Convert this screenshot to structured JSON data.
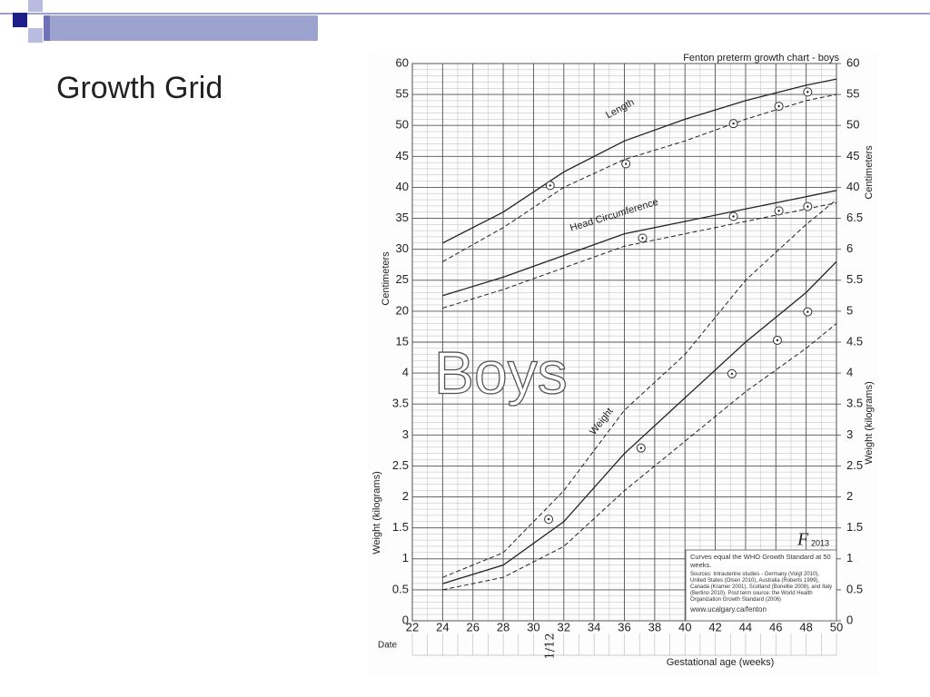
{
  "slide": {
    "title": "Growth Grid"
  },
  "chart_data": [
    {
      "type": "line",
      "title": "Fenton preterm growth chart - boys",
      "watermark": "Boys",
      "x_label": "Gestational age (weeks)",
      "date_label": "Date",
      "date_entry": "1/12",
      "y_label": "Centimeters",
      "y2_label": "Centimeters",
      "xlim": [
        22,
        50
      ],
      "xticks": [
        22,
        24,
        26,
        28,
        30,
        32,
        34,
        36,
        38,
        40,
        42,
        44,
        46,
        48,
        50
      ],
      "ylim": [
        -30,
        60
      ],
      "yticks": [
        15,
        20,
        25,
        30,
        35,
        40,
        45,
        50,
        55,
        60
      ],
      "y2lim": [
        -30,
        60
      ],
      "y2ticks": [
        40,
        45,
        50,
        55,
        60
      ],
      "series": [
        {
          "name": "Length",
          "style": "solid",
          "x": [
            24,
            28,
            32,
            36,
            40,
            44,
            48,
            50
          ],
          "values": [
            31,
            36,
            42.5,
            47.5,
            51,
            54,
            56.5,
            57.5
          ]
        },
        {
          "style": "dashed",
          "x": [
            24,
            28,
            32,
            36,
            40,
            44,
            48,
            50
          ],
          "values": [
            28,
            33.5,
            40,
            44.5,
            47.5,
            51,
            54,
            55
          ]
        },
        {
          "name": "Head Circumference",
          "style": "solid",
          "x": [
            24,
            28,
            32,
            36,
            40,
            44,
            48,
            50
          ],
          "values": [
            22.5,
            25.5,
            29,
            32.5,
            34.5,
            36.5,
            38.5,
            39.5
          ]
        },
        {
          "style": "dashed",
          "x": [
            24,
            28,
            32,
            36,
            40,
            44,
            48,
            50
          ],
          "values": [
            20.5,
            23.5,
            27,
            30.5,
            32.5,
            34.5,
            36.5,
            37.5
          ]
        },
        {
          "style": "points",
          "x": [
            31.1,
            36.1,
            43.2,
            46.2,
            48.1
          ],
          "values": [
            40.3,
            43.8,
            50.3,
            53.1,
            55.4
          ]
        },
        {
          "style": "points",
          "x": [
            37.2,
            43.2,
            46.2,
            48.1
          ],
          "values": [
            31.8,
            35.3,
            36.2,
            36.9
          ]
        }
      ]
    },
    {
      "type": "line",
      "y_label": "Weight (kilograms)",
      "y2_label": "Weight (kilograms)",
      "xlim": [
        22,
        50
      ],
      "ylim": [
        0,
        9
      ],
      "yticks": [
        0,
        0.5,
        1,
        1.5,
        2,
        2.5,
        3,
        3.5,
        4
      ],
      "y2lim": [
        0,
        9
      ],
      "y2ticks": [
        0,
        0.5,
        1,
        1.5,
        2,
        2.5,
        3,
        3.5,
        4,
        4.5,
        5,
        5.5,
        6,
        6.5
      ],
      "series": [
        {
          "name": "Weight",
          "style": "solid",
          "x": [
            24,
            28,
            32,
            36,
            40,
            44,
            48,
            50
          ],
          "values": [
            0.6,
            0.9,
            1.6,
            2.7,
            3.6,
            4.5,
            5.3,
            5.8
          ]
        },
        {
          "style": "dashed",
          "x": [
            24,
            28,
            32,
            36,
            40,
            44,
            48,
            50
          ],
          "values": [
            0.7,
            1.1,
            2.1,
            3.4,
            4.3,
            5.5,
            6.4,
            6.8
          ]
        },
        {
          "style": "dashed",
          "x": [
            24,
            28,
            32,
            36,
            40,
            44,
            48,
            50
          ],
          "values": [
            0.5,
            0.7,
            1.2,
            2.1,
            2.9,
            3.7,
            4.4,
            4.8
          ]
        },
        {
          "style": "points",
          "x": [
            31.0,
            37.1,
            43.1,
            46.1,
            48.1
          ],
          "values": [
            1.64,
            2.79,
            3.99,
            4.53,
            4.99
          ]
        }
      ]
    }
  ],
  "info_box": {
    "logo": "F",
    "year": "2013",
    "note": "Curves equal the WHO Growth Standard at 50 weeks.",
    "sources": "Sources: Intrauterine studies - Germany (Voigt 2010), United States (Olsen 2010), Australia (Roberts 1999), Canada (Kramer 2001), Scotland (Bonellie 2008), and Italy (Bertino 2010). Post term source: the World Health Organization Growth Standard (2006)",
    "url": "www.ucalgary.ca/fenton"
  }
}
